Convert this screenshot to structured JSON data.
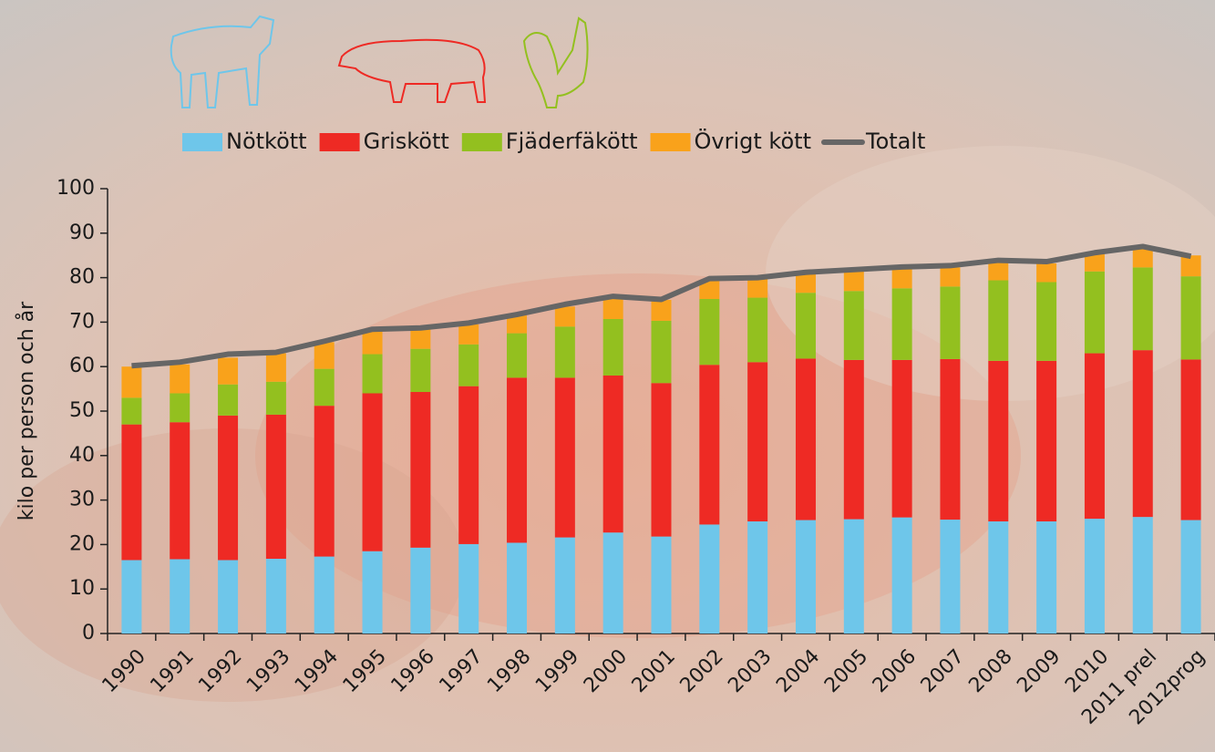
{
  "chart_data": {
    "type": "bar",
    "stacked": true,
    "y_label": "kilo per person och år",
    "categories": [
      "1990",
      "1991",
      "1992",
      "1993",
      "1994",
      "1995",
      "1996",
      "1997",
      "1998",
      "1999",
      "2000",
      "2001",
      "2002",
      "2003",
      "2004",
      "2005",
      "2006",
      "2007",
      "2008",
      "2009",
      "2010",
      "2011 prel",
      "2012prog"
    ],
    "series": [
      {
        "name": "Nötkött",
        "color": "#6ec6ea",
        "values": [
          16.5,
          16.7,
          16.5,
          16.8,
          17.3,
          18.5,
          19.3,
          20.1,
          20.4,
          21.6,
          22.7,
          21.8,
          24.5,
          25.2,
          25.5,
          25.7,
          26.1,
          25.6,
          25.2,
          25.2,
          25.8,
          26.2,
          25.5
        ]
      },
      {
        "name": "Griskött",
        "color": "#ee2a24",
        "values": [
          30.5,
          30.8,
          32.5,
          32.4,
          33.9,
          35.5,
          35.0,
          35.5,
          37.1,
          35.9,
          35.3,
          34.5,
          35.9,
          35.8,
          36.3,
          35.8,
          35.4,
          36.1,
          36.1,
          36.1,
          37.2,
          37.5,
          36.1
        ]
      },
      {
        "name": "Fjäderfäkött",
        "color": "#93c01f",
        "values": [
          6.0,
          6.5,
          7.0,
          7.4,
          8.3,
          8.8,
          9.7,
          9.4,
          10.0,
          11.5,
          12.7,
          14.0,
          14.8,
          14.5,
          14.8,
          15.5,
          16.1,
          16.3,
          18.1,
          17.7,
          18.4,
          18.6,
          18.7
        ]
      },
      {
        "name": "Övrigt kött",
        "color": "#f9a21b",
        "values": [
          7.0,
          6.5,
          6.0,
          6.4,
          6.0,
          5.2,
          4.5,
          4.5,
          4.0,
          4.5,
          4.8,
          4.7,
          4.3,
          4.3,
          4.2,
          4.4,
          4.4,
          4.3,
          4.1,
          4.2,
          3.9,
          4.4,
          4.7
        ]
      },
      {
        "name": "Totalt",
        "type": "line",
        "color": "#666666",
        "values": [
          60.2,
          61.0,
          62.8,
          63.2,
          65.7,
          68.4,
          68.7,
          69.8,
          71.7,
          74.0,
          75.8,
          75.1,
          79.8,
          80.0,
          81.2,
          81.8,
          82.4,
          82.7,
          83.9,
          83.6,
          85.6,
          87.0,
          84.8
        ]
      }
    ],
    "ylim": [
      0,
      100
    ],
    "yticks": [
      0,
      10,
      20,
      30,
      40,
      50,
      60,
      70,
      80,
      90,
      100
    ],
    "legend": "top"
  }
}
